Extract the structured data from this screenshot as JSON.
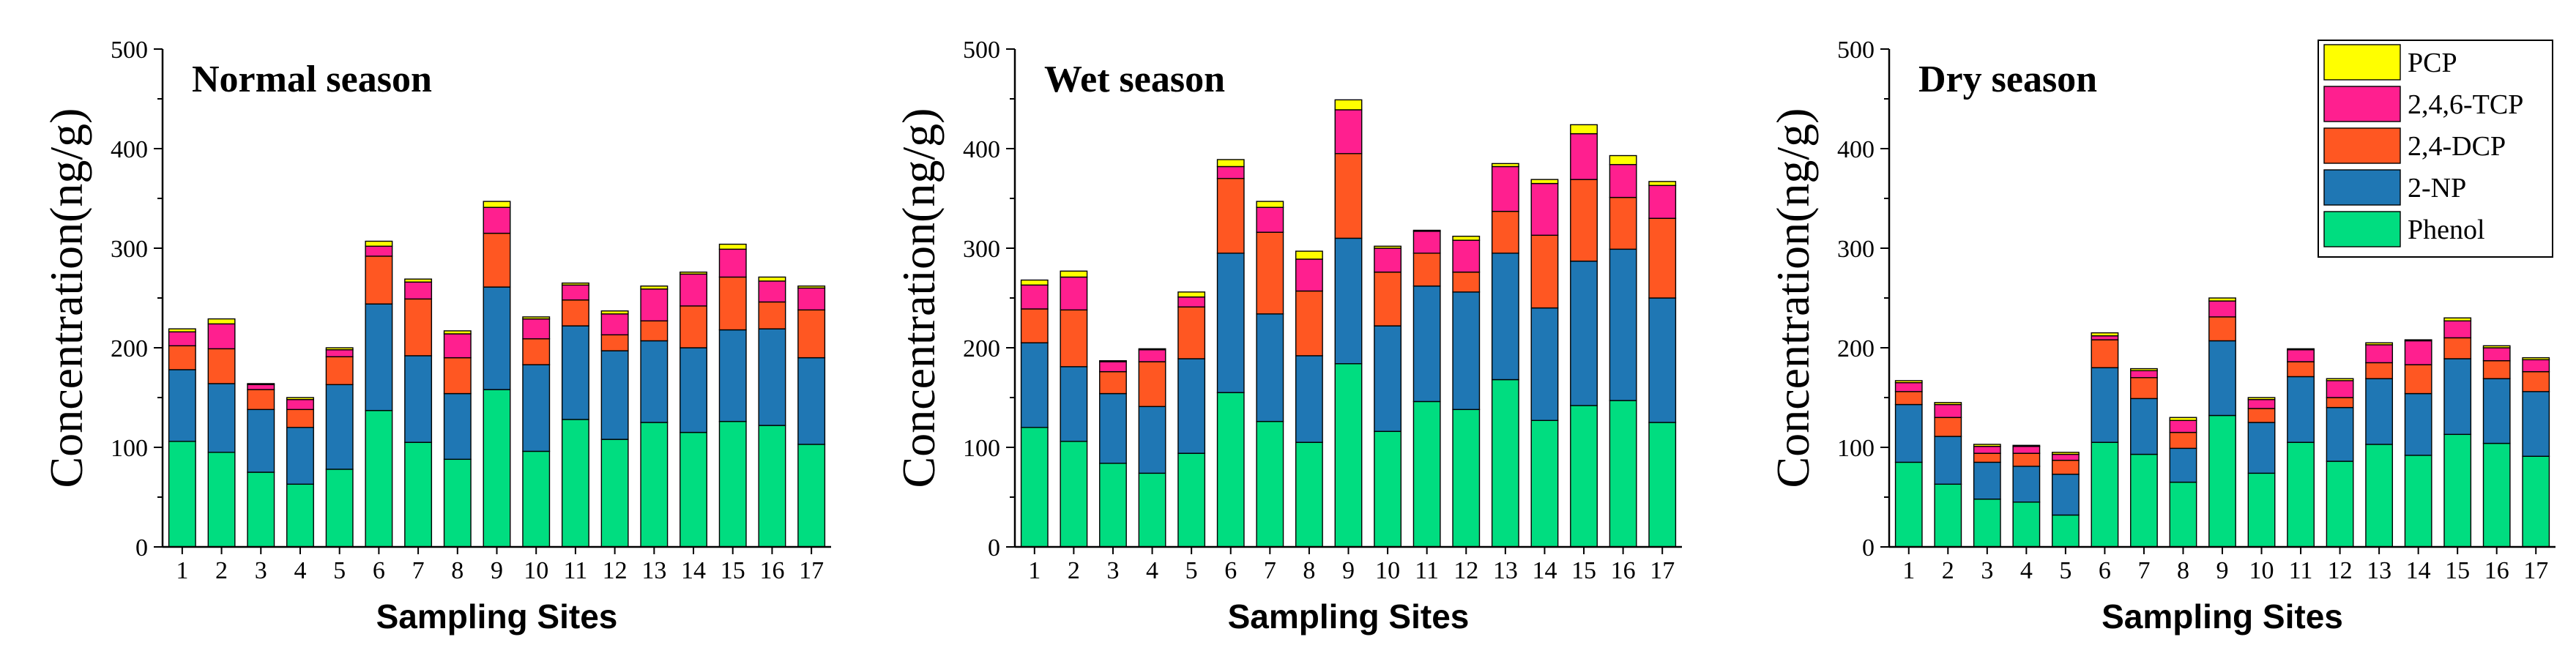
{
  "chart_data": [
    {
      "type": "bar",
      "stacked": true,
      "title": "Normal season",
      "xlabel": "Sampling Sites",
      "ylabel": "Concentration(ng/g)",
      "ylim": [
        0,
        500
      ],
      "yticks": [
        0,
        100,
        200,
        300,
        400,
        500
      ],
      "categories": [
        "1",
        "2",
        "3",
        "4",
        "5",
        "6",
        "7",
        "8",
        "9",
        "10",
        "11",
        "12",
        "13",
        "14",
        "15",
        "16",
        "17"
      ],
      "series": [
        {
          "name": "Phenol",
          "color": "#00DD80",
          "values": [
            106,
            95,
            75,
            63,
            78,
            137,
            105,
            88,
            158,
            96,
            128,
            108,
            125,
            115,
            126,
            122,
            103
          ]
        },
        {
          "name": "2-NP",
          "color": "#1F77B4",
          "values": [
            72,
            69,
            63,
            57,
            85,
            107,
            87,
            66,
            103,
            87,
            94,
            89,
            82,
            85,
            92,
            97,
            87
          ]
        },
        {
          "name": "2,4-DCP",
          "color": "#FF5722",
          "values": [
            24,
            35,
            20,
            18,
            28,
            48,
            57,
            36,
            54,
            26,
            26,
            16,
            20,
            42,
            53,
            27,
            48
          ]
        },
        {
          "name": "2,4,6-TCP",
          "color": "#FF1F8F",
          "values": [
            14,
            25,
            5,
            10,
            7,
            10,
            17,
            24,
            26,
            20,
            15,
            21,
            32,
            32,
            28,
            21,
            22
          ]
        },
        {
          "name": "PCP",
          "color": "#FFFF00",
          "values": [
            3,
            5,
            1,
            2,
            2,
            5,
            3,
            3,
            6,
            2,
            2,
            3,
            3,
            2,
            5,
            4,
            2
          ]
        }
      ]
    },
    {
      "type": "bar",
      "stacked": true,
      "title": "Wet season",
      "xlabel": "Sampling Sites",
      "ylabel": "Concentration(ng/g)",
      "ylim": [
        0,
        500
      ],
      "yticks": [
        0,
        100,
        200,
        300,
        400,
        500
      ],
      "categories": [
        "1",
        "2",
        "3",
        "4",
        "5",
        "6",
        "7",
        "8",
        "9",
        "10",
        "11",
        "12",
        "13",
        "14",
        "15",
        "16",
        "17"
      ],
      "series": [
        {
          "name": "Phenol",
          "color": "#00DD80",
          "values": [
            120,
            106,
            84,
            74,
            94,
            155,
            126,
            105,
            184,
            116,
            146,
            138,
            168,
            127,
            142,
            147,
            125
          ]
        },
        {
          "name": "2-NP",
          "color": "#1F77B4",
          "values": [
            85,
            75,
            70,
            67,
            95,
            140,
            108,
            87,
            126,
            106,
            116,
            118,
            127,
            113,
            145,
            152,
            125
          ]
        },
        {
          "name": "2,4-DCP",
          "color": "#FF5722",
          "values": [
            34,
            57,
            22,
            45,
            52,
            75,
            82,
            65,
            85,
            54,
            33,
            20,
            42,
            73,
            82,
            52,
            80
          ]
        },
        {
          "name": "2,4,6-TCP",
          "color": "#FF1F8F",
          "values": [
            24,
            33,
            10,
            12,
            10,
            12,
            25,
            32,
            44,
            24,
            22,
            32,
            45,
            52,
            46,
            33,
            33
          ]
        },
        {
          "name": "PCP",
          "color": "#FFFF00",
          "values": [
            5,
            6,
            1,
            1,
            5,
            7,
            6,
            8,
            10,
            2,
            1,
            4,
            3,
            4,
            9,
            9,
            4
          ]
        }
      ]
    },
    {
      "type": "bar",
      "stacked": true,
      "title": "Dry season",
      "xlabel": "Sampling Sites",
      "ylabel": "Concentration(ng/g)",
      "ylim": [
        0,
        500
      ],
      "yticks": [
        0,
        100,
        200,
        300,
        400,
        500
      ],
      "categories": [
        "1",
        "2",
        "3",
        "4",
        "5",
        "6",
        "7",
        "8",
        "9",
        "10",
        "11",
        "12",
        "13",
        "14",
        "15",
        "16",
        "17"
      ],
      "series": [
        {
          "name": "Phenol",
          "color": "#00DD80",
          "values": [
            85,
            63,
            48,
            45,
            32,
            105,
            93,
            65,
            132,
            74,
            105,
            86,
            103,
            92,
            113,
            104,
            91
          ]
        },
        {
          "name": "2-NP",
          "color": "#1F77B4",
          "values": [
            58,
            48,
            37,
            36,
            41,
            75,
            56,
            34,
            75,
            51,
            66,
            54,
            66,
            62,
            76,
            65,
            65
          ]
        },
        {
          "name": "2,4-DCP",
          "color": "#FF5722",
          "values": [
            13,
            19,
            9,
            13,
            14,
            28,
            21,
            16,
            24,
            14,
            15,
            10,
            16,
            29,
            21,
            18,
            20
          ]
        },
        {
          "name": "2,4,6-TCP",
          "color": "#FF1F8F",
          "values": [
            9,
            13,
            7,
            7,
            6,
            4,
            7,
            12,
            16,
            9,
            12,
            17,
            18,
            24,
            17,
            13,
            12
          ]
        },
        {
          "name": "PCP",
          "color": "#FFFF00",
          "values": [
            2,
            2,
            2,
            1,
            2,
            3,
            2,
            3,
            3,
            2,
            1,
            2,
            2,
            1,
            3,
            2,
            2
          ]
        }
      ]
    }
  ],
  "legend": {
    "placement": "top-right",
    "entries": [
      {
        "label": "PCP",
        "color": "#FFFF00"
      },
      {
        "label": "2,4,6-TCP",
        "color": "#FF1F8F"
      },
      {
        "label": "2,4-DCP",
        "color": "#FF5722"
      },
      {
        "label": "2-NP",
        "color": "#1F77B4"
      },
      {
        "label": "Phenol",
        "color": "#00DD80"
      }
    ]
  }
}
